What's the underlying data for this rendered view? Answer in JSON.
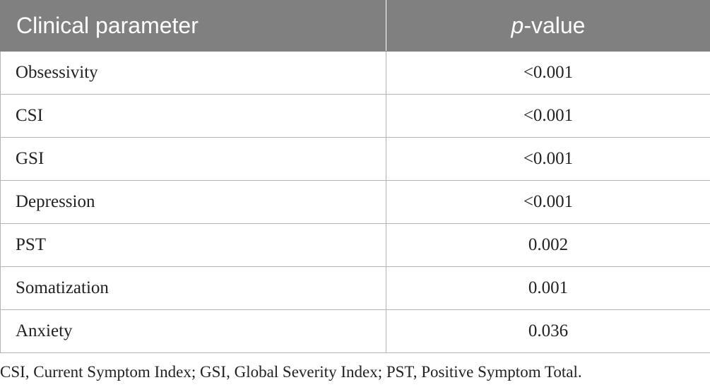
{
  "table": {
    "header": {
      "parameter": "Clinical parameter",
      "p_symbol": "p",
      "p_suffix": "-value"
    },
    "rows": [
      {
        "parameter": "Obsessivity",
        "p_value": "<0.001"
      },
      {
        "parameter": "CSI",
        "p_value": "<0.001"
      },
      {
        "parameter": "GSI",
        "p_value": "<0.001"
      },
      {
        "parameter": "Depression",
        "p_value": "<0.001"
      },
      {
        "parameter": "PST",
        "p_value": "0.002"
      },
      {
        "parameter": "Somatization",
        "p_value": "0.001"
      },
      {
        "parameter": "Anxiety",
        "p_value": "0.036"
      }
    ]
  },
  "footnote": "CSI, Current Symptom Index; GSI, Global Severity Index; PST, Positive Symptom Total.",
  "colors": {
    "header_bg": "#808080",
    "header_text": "#ffffff",
    "border": "#b3b3b3",
    "body_text": "#222222"
  }
}
